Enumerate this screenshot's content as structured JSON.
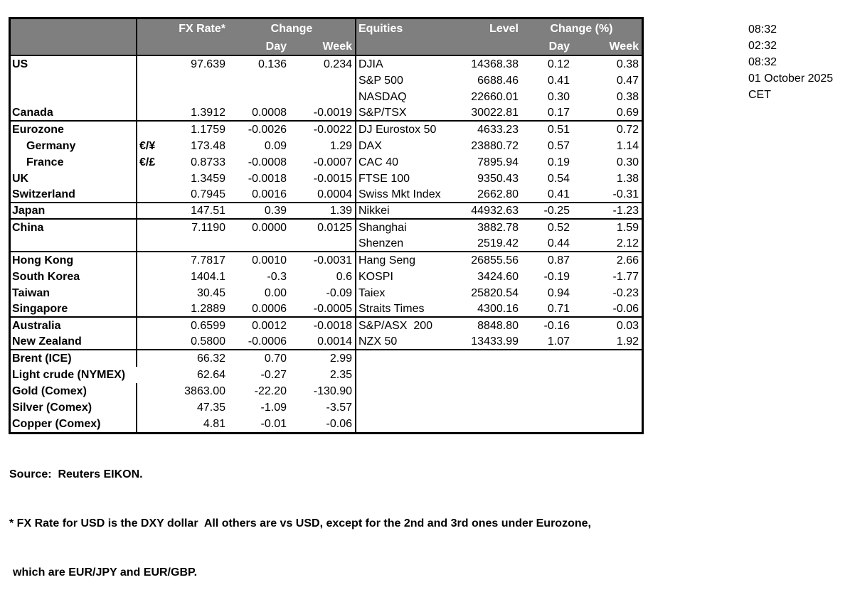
{
  "header": {
    "fx_rate": "FX Rate*",
    "change": "Change",
    "day": "Day",
    "week": "Week",
    "equities": "Equities",
    "level": "Level",
    "change_pct": "Change (%)"
  },
  "timestamps": [
    "08:32",
    "02:32",
    "08:32",
    "01 October 2025",
    "CET"
  ],
  "rows": [
    {
      "label": "US",
      "pair": "",
      "fx": "97.639",
      "fx_day": "0.136",
      "fx_week": "0.234",
      "eq": "DJIA",
      "level": "14368.38",
      "eq_day": "0.12",
      "eq_week": "0.38"
    },
    {
      "label": "",
      "eq": "S&P 500",
      "level": "6688.46",
      "eq_day": "0.41",
      "eq_week": "0.47"
    },
    {
      "label": "",
      "eq": "NASDAQ",
      "level": "22660.01",
      "eq_day": "0.30",
      "eq_week": "0.38"
    },
    {
      "label": "Canada",
      "fx": "1.3912",
      "fx_day": "0.0008",
      "fx_week": "-0.0019",
      "eq": "S&P/TSX",
      "level": "30022.81",
      "eq_day": "0.17",
      "eq_week": "0.69",
      "group_end": true
    },
    {
      "label": "Eurozone",
      "fx": "1.1759",
      "fx_day": "-0.0026",
      "fx_week": "-0.0022",
      "eq": "DJ Eurostox 50",
      "level": "4633.23",
      "eq_day": "0.51",
      "eq_week": "0.72"
    },
    {
      "label": "Germany",
      "indent": true,
      "pair": "€/¥",
      "fx": "173.48",
      "fx_day": "0.09",
      "fx_week": "1.29",
      "eq": "DAX",
      "level": "23880.72",
      "eq_day": "0.57",
      "eq_week": "1.14"
    },
    {
      "label": "France",
      "indent": true,
      "pair": "€/£",
      "fx": "0.8733",
      "fx_day": "-0.0008",
      "fx_week": "-0.0007",
      "eq": "CAC 40",
      "level": "7895.94",
      "eq_day": "0.19",
      "eq_week": "0.30"
    },
    {
      "label": "UK",
      "fx": "1.3459",
      "fx_day": "-0.0018",
      "fx_week": "-0.0015",
      "eq": "FTSE 100",
      "level": "9350.43",
      "eq_day": "0.54",
      "eq_week": "1.38"
    },
    {
      "label": "Switzerland",
      "fx": "0.7945",
      "fx_day": "0.0016",
      "fx_week": "0.0004",
      "eq": "Swiss Mkt Index",
      "level": "2662.80",
      "eq_day": "0.41",
      "eq_week": "-0.31",
      "group_end": true
    },
    {
      "label": "Japan",
      "fx": "147.51",
      "fx_day": "0.39",
      "fx_week": "1.39",
      "eq": "Nikkei",
      "level": "44932.63",
      "eq_day": "-0.25",
      "eq_week": "-1.23",
      "group_end": true
    },
    {
      "label": "China",
      "fx": "7.1190",
      "fx_day": "0.0000",
      "fx_week": "0.0125",
      "eq": "Shanghai",
      "level": "3882.78",
      "eq_day": "0.52",
      "eq_week": "1.59"
    },
    {
      "label": "",
      "eq": "Shenzen",
      "level": "2519.42",
      "eq_day": "0.44",
      "eq_week": "2.12",
      "group_end": true
    },
    {
      "label": "Hong Kong",
      "fx": "7.7817",
      "fx_day": "0.0010",
      "fx_week": "-0.0031",
      "eq": "Hang Seng",
      "level": "26855.56",
      "eq_day": "0.87",
      "eq_week": "2.66"
    },
    {
      "label": "South Korea",
      "fx": "1404.1",
      "fx_day": "-0.3",
      "fx_week": "0.6",
      "eq": "KOSPI",
      "level": "3424.60",
      "eq_day": "-0.19",
      "eq_week": "-1.77"
    },
    {
      "label": "Taiwan",
      "fx": "30.45",
      "fx_day": "0.00",
      "fx_week": "-0.09",
      "eq": "Taiex",
      "level": "25820.54",
      "eq_day": "0.94",
      "eq_week": "-0.23"
    },
    {
      "label": "Singapore",
      "fx": "1.2889",
      "fx_day": "0.0006",
      "fx_week": "-0.0005",
      "eq": "Straits Times",
      "level": "4300.16",
      "eq_day": "0.71",
      "eq_week": "-0.06",
      "group_end": true
    },
    {
      "label": "Australia",
      "fx": "0.6599",
      "fx_day": "0.0012",
      "fx_week": "-0.0018",
      "eq": "S&P/ASX  200",
      "level": "8848.80",
      "eq_day": "-0.16",
      "eq_week": "0.03"
    },
    {
      "label": "New Zealand",
      "fx": "0.5800",
      "fx_day": "-0.0006",
      "fx_week": "0.0014",
      "eq": "NZX 50",
      "level": "13433.99",
      "eq_day": "1.07",
      "eq_week": "1.92",
      "group_end": true
    },
    {
      "label": "Brent (ICE)",
      "fx": "66.32",
      "fx_day": "0.70",
      "fx_week": "2.99"
    },
    {
      "label": "Light crude (NYMEX)",
      "overflow": true,
      "fx": "62.64",
      "fx_day": "-0.27",
      "fx_week": "2.35"
    },
    {
      "label": "Gold (Comex)",
      "fx": "3863.00",
      "fx_day": "-22.20",
      "fx_week": "-130.90"
    },
    {
      "label": "Silver (Comex)",
      "fx": "47.35",
      "fx_day": "-1.09",
      "fx_week": "-3.57"
    },
    {
      "label": "Copper (Comex)",
      "fx": "4.81",
      "fx_day": "-0.01",
      "fx_week": "-0.06"
    }
  ],
  "footnotes": {
    "source": "Source:  Reuters EIKON.",
    "note1": "* FX Rate for USD is the DXY dollar  All others are vs USD, except for the 2nd and 3rd ones under Eurozone,",
    "note2": "which are EUR/JPY and EUR/GBP."
  },
  "colors": {
    "header_bg": "#7f7f7f",
    "header_text": "#ffffff",
    "border": "#000000",
    "text": "#000000"
  }
}
